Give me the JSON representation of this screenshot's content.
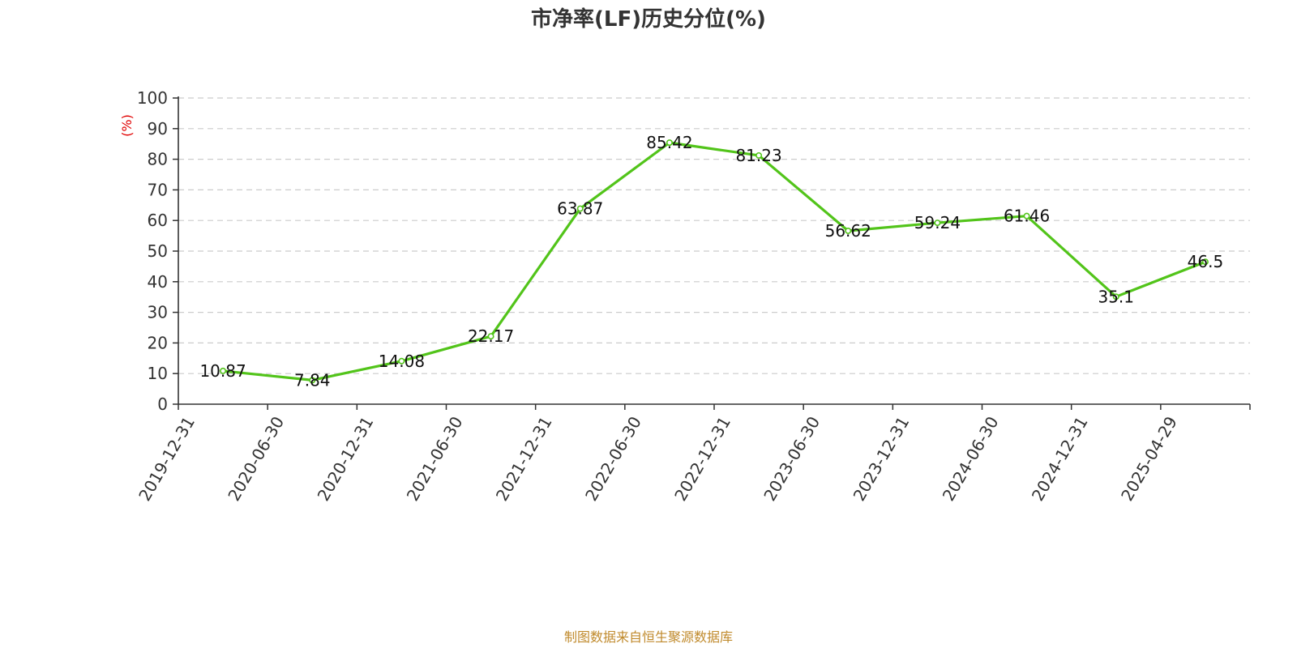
{
  "chart_data": {
    "type": "line",
    "title": "市净率(LF)历史分位(%)",
    "ylabel": "(%)",
    "xlabel": "",
    "ylim": [
      0,
      100
    ],
    "yticks": [
      0,
      10,
      20,
      30,
      40,
      50,
      60,
      70,
      80,
      90,
      100
    ],
    "grid": true,
    "categories": [
      "2019-12-31",
      "2020-06-30",
      "2020-12-31",
      "2021-06-30",
      "2021-12-31",
      "2022-06-30",
      "2022-12-31",
      "2023-06-30",
      "2023-12-31",
      "2024-06-30",
      "2024-12-31",
      "2025-04-29"
    ],
    "series": [
      {
        "values": [
          10.87,
          7.84,
          14.08,
          22.17,
          63.87,
          85.42,
          81.23,
          56.62,
          59.24,
          61.46,
          35.1,
          46.5
        ],
        "labels": [
          "10.87",
          "7.84",
          "14.08",
          "22.17",
          "63.87",
          "85.42",
          "81.23",
          "56.62",
          "59.24",
          "61.46",
          "35.1",
          "46.5"
        ],
        "color": "#52c41a"
      }
    ],
    "colors": {
      "line": "#52c41a",
      "grid": "#cccccc",
      "axis": "#333333",
      "unit": "#e00000",
      "source": "#c08a2c"
    }
  },
  "footer": {
    "source": "制图数据来自恒生聚源数据库"
  }
}
